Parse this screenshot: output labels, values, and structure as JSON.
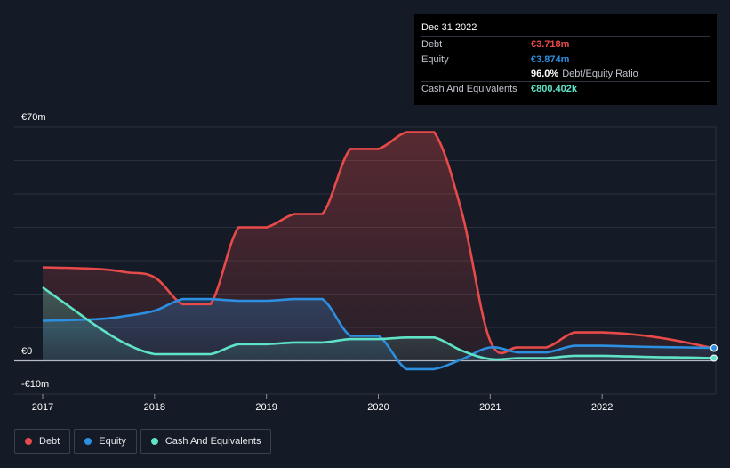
{
  "colors": {
    "debt": "#e84a4a",
    "equity": "#2d8fe0",
    "cash": "#5fe3c6",
    "background": "#151b26"
  },
  "tooltip": {
    "date": "Dec 31 2022",
    "debt_label": "Debt",
    "debt_value": "€3.718m",
    "equity_label": "Equity",
    "equity_value": "€3.874m",
    "ratio_value": "96.0%",
    "ratio_label": "Debt/Equity Ratio",
    "cash_label": "Cash And Equivalents",
    "cash_value": "€800.402k"
  },
  "legend": [
    {
      "label": "Debt",
      "color": "#e84a4a"
    },
    {
      "label": "Equity",
      "color": "#2d8fe0"
    },
    {
      "label": "Cash And Equivalents",
      "color": "#5fe3c6"
    }
  ],
  "chart_data": {
    "type": "area",
    "y_tick_labels": [
      "€70m",
      "€0",
      "-€10m"
    ],
    "x_tick_labels": [
      "2017",
      "2018",
      "2019",
      "2020",
      "2021",
      "2022"
    ],
    "ylim": [
      -10,
      70
    ],
    "xlim": [
      2017.0,
      2023.0
    ],
    "grid": true,
    "legend_position": "bottom-left",
    "series": [
      {
        "name": "Debt",
        "points": [
          [
            2017.0,
            28.0
          ],
          [
            2017.5,
            27.5
          ],
          [
            2017.75,
            26.5
          ],
          [
            2018.0,
            25.0
          ],
          [
            2018.25,
            17.0
          ],
          [
            2018.5,
            17.0
          ],
          [
            2018.75,
            40.0
          ],
          [
            2019.0,
            40.0
          ],
          [
            2019.25,
            44.0
          ],
          [
            2019.5,
            44.0
          ],
          [
            2019.75,
            63.5
          ],
          [
            2020.0,
            63.5
          ],
          [
            2020.25,
            68.5
          ],
          [
            2020.5,
            68.5
          ],
          [
            2020.75,
            44.0
          ],
          [
            2021.0,
            6.0
          ],
          [
            2021.25,
            4.0
          ],
          [
            2021.5,
            4.0
          ],
          [
            2021.75,
            8.5
          ],
          [
            2022.0,
            8.5
          ],
          [
            2022.25,
            8.0
          ],
          [
            2022.5,
            7.0
          ],
          [
            2022.75,
            5.5
          ],
          [
            2023.0,
            3.718
          ]
        ]
      },
      {
        "name": "Equity",
        "points": [
          [
            2017.0,
            12.0
          ],
          [
            2017.5,
            12.5
          ],
          [
            2017.75,
            13.5
          ],
          [
            2018.0,
            15.0
          ],
          [
            2018.25,
            18.5
          ],
          [
            2018.5,
            18.5
          ],
          [
            2018.75,
            18.0
          ],
          [
            2019.0,
            18.0
          ],
          [
            2019.25,
            18.5
          ],
          [
            2019.5,
            18.5
          ],
          [
            2019.75,
            7.5
          ],
          [
            2020.0,
            7.5
          ],
          [
            2020.25,
            -2.5
          ],
          [
            2020.5,
            -2.5
          ],
          [
            2020.75,
            0.5
          ],
          [
            2021.0,
            4.0
          ],
          [
            2021.25,
            2.5
          ],
          [
            2021.5,
            2.5
          ],
          [
            2021.75,
            4.5
          ],
          [
            2022.0,
            4.5
          ],
          [
            2022.25,
            4.3
          ],
          [
            2022.5,
            4.1
          ],
          [
            2022.75,
            4.0
          ],
          [
            2023.0,
            3.874
          ]
        ]
      },
      {
        "name": "Cash And Equivalents",
        "points": [
          [
            2017.0,
            22.0
          ],
          [
            2017.25,
            16.0
          ],
          [
            2017.5,
            10.0
          ],
          [
            2017.75,
            5.0
          ],
          [
            2018.0,
            2.0
          ],
          [
            2018.25,
            2.0
          ],
          [
            2018.5,
            2.0
          ],
          [
            2018.75,
            5.0
          ],
          [
            2019.0,
            5.0
          ],
          [
            2019.25,
            5.5
          ],
          [
            2019.5,
            5.5
          ],
          [
            2019.75,
            6.5
          ],
          [
            2020.0,
            6.5
          ],
          [
            2020.25,
            7.0
          ],
          [
            2020.5,
            7.0
          ],
          [
            2020.75,
            3.0
          ],
          [
            2021.0,
            0.5
          ],
          [
            2021.25,
            0.8
          ],
          [
            2021.5,
            0.8
          ],
          [
            2021.75,
            1.5
          ],
          [
            2022.0,
            1.5
          ],
          [
            2022.25,
            1.3
          ],
          [
            2022.5,
            1.1
          ],
          [
            2022.75,
            1.0
          ],
          [
            2023.0,
            0.8
          ]
        ]
      }
    ]
  }
}
